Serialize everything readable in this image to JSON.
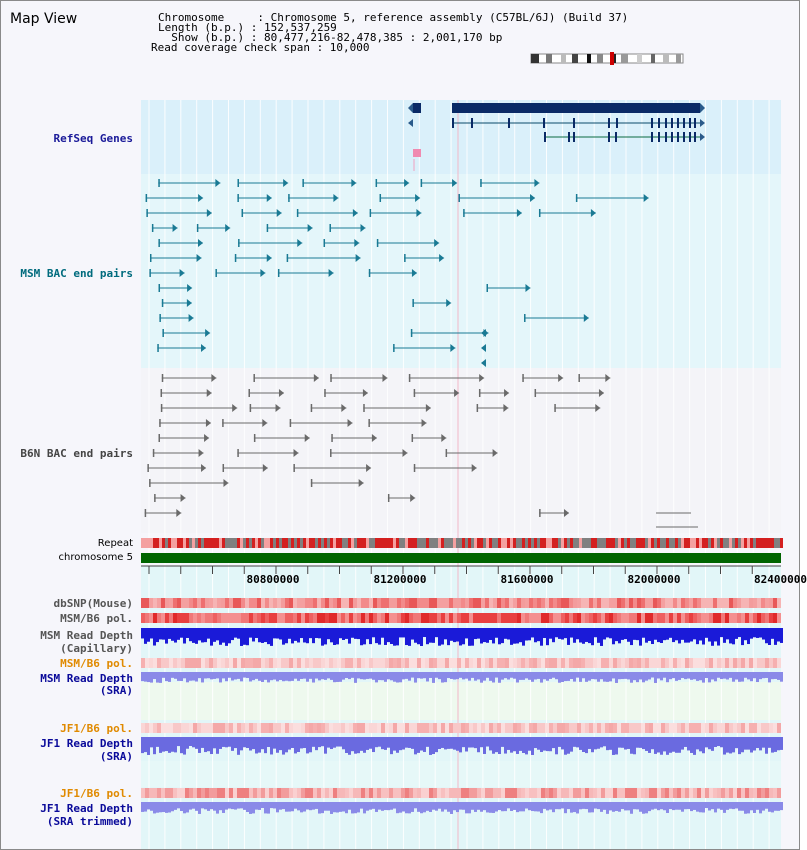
{
  "header": {
    "title": "Map View",
    "info_lines": [
      "Chromosome     : Chromosome 5, reference assembly (C57BL/6J) (Build 37)",
      "Length (b.p.) : 152,537,259",
      "  Show (b.p.) : 80,477,216-82,478,385 : 2,001,170 bp",
      "Read coverage check span : 10,000"
    ]
  },
  "tracks": {
    "refseq": "RefSeq Genes",
    "msm_bac": "MSM BAC end pairs",
    "b6n_bac": "B6N BAC end pairs",
    "repeat": "Repeat",
    "chromosome": "chromosome 5",
    "dbsnp": "dbSNP(Mouse)",
    "msm_b6_pol": "MSM/B6 pol.",
    "msm_read_depth_cap_1": "MSM Read Depth",
    "msm_read_depth_cap_2": "(Capillary)",
    "msm_b6_pol_sra": "MSM/B6 pol.",
    "msm_read_depth_sra_1": "MSM Read Depth",
    "msm_read_depth_sra_2": "(SRA)",
    "jf1_b6_pol": "JF1/B6 pol.",
    "jf1_read_depth_1": "JF1 Read Depth",
    "jf1_read_depth_2": "(SRA)",
    "jf1_b6_pol_2": "JF1/B6 pol.",
    "jf1_read_depth_trim_1": "JF1 Read Depth",
    "jf1_read_depth_trim_2": "(SRA trimmed)"
  },
  "axis": {
    "ticks": [
      "80800000",
      "81200000",
      "81600000",
      "82000000",
      "82400000"
    ]
  },
  "colors": {
    "refseq_bg": "#daf0fa",
    "msm_bg": "#e4f6fa",
    "refseq_label": "#1a1a99",
    "msm_label": "#006b7d",
    "b6n_label": "#444444",
    "pol_label_orange": "#e08a00",
    "depth_label_blue": "#0a0a9a",
    "gene_dark": "#0a2a66",
    "chromosome_green": "#006400"
  }
}
